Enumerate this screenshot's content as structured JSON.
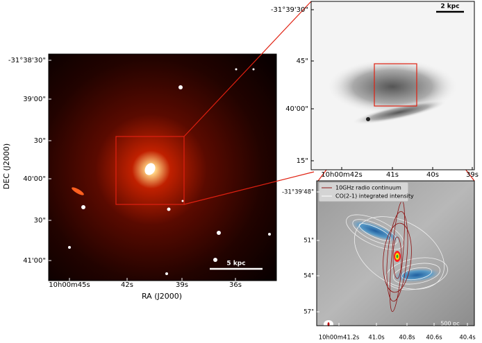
{
  "panels": [
    {
      "x_axis_label": "RA (J2000)",
      "y_axis_label": "DEC (J2000)",
      "xticks": [
        "10h00m45s",
        "42s",
        "39s",
        "36s"
      ],
      "yticks": [
        "-31°38'30\"",
        "39'00\"",
        "30\"",
        "40'00\"",
        "30\"",
        "41'00\""
      ],
      "scale_bar": "5 kpc"
    },
    {
      "xticks": [
        "10h00m42s",
        "41s",
        "40s",
        "39s"
      ],
      "yticks": [
        "-31°39'30\"",
        "45\"",
        "40'00\"",
        "15\""
      ],
      "scale_bar": "2 kpc"
    },
    {
      "legend": [
        "10GHz radio continuum",
        "CO(2-1) integrated intensity"
      ],
      "xticks": [
        "10h00m41.2s",
        "41.0s",
        "40.8s",
        "40.6s",
        "40.4s"
      ],
      "yticks": [
        "-31°39'48\"",
        "51\"",
        "54\"",
        "57\""
      ],
      "scale_bar": "500 pc"
    }
  ]
}
